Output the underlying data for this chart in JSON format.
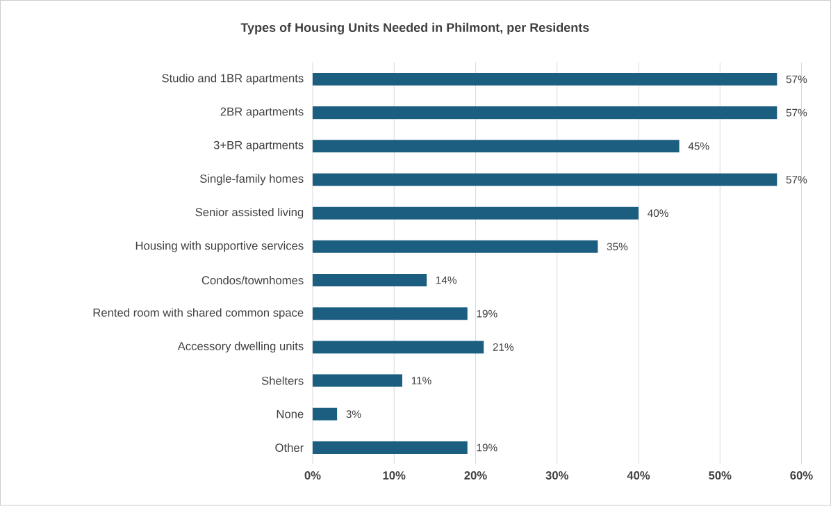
{
  "chart_data": {
    "type": "bar",
    "orientation": "horizontal",
    "title": "Types of Housing Units Needed in Philmont, per Residents",
    "categories": [
      "Studio and 1BR apartments",
      "2BR apartments",
      "3+BR apartments",
      "Single-family homes",
      "Senior assisted living",
      "Housing with supportive services",
      "Condos/townhomes",
      "Rented room with shared common space",
      "Accessory dwelling units",
      "Shelters",
      "None",
      "Other"
    ],
    "values": [
      57,
      57,
      45,
      57,
      40,
      35,
      14,
      19,
      21,
      11,
      3,
      19
    ],
    "value_labels": [
      "57%",
      "57%",
      "45%",
      "57%",
      "40%",
      "35%",
      "14%",
      "19%",
      "21%",
      "11%",
      "3%",
      "19%"
    ],
    "color": "#1b5e80",
    "xlim": [
      0,
      60
    ],
    "xticks": [
      {
        "value": 0,
        "label": "0%"
      },
      {
        "value": 10,
        "label": "10%"
      },
      {
        "value": 20,
        "label": "20%"
      },
      {
        "value": 30,
        "label": "30%"
      },
      {
        "value": 40,
        "label": "40%"
      },
      {
        "value": 50,
        "label": "50%"
      },
      {
        "value": 60,
        "label": "60%"
      }
    ],
    "grid": "x"
  }
}
